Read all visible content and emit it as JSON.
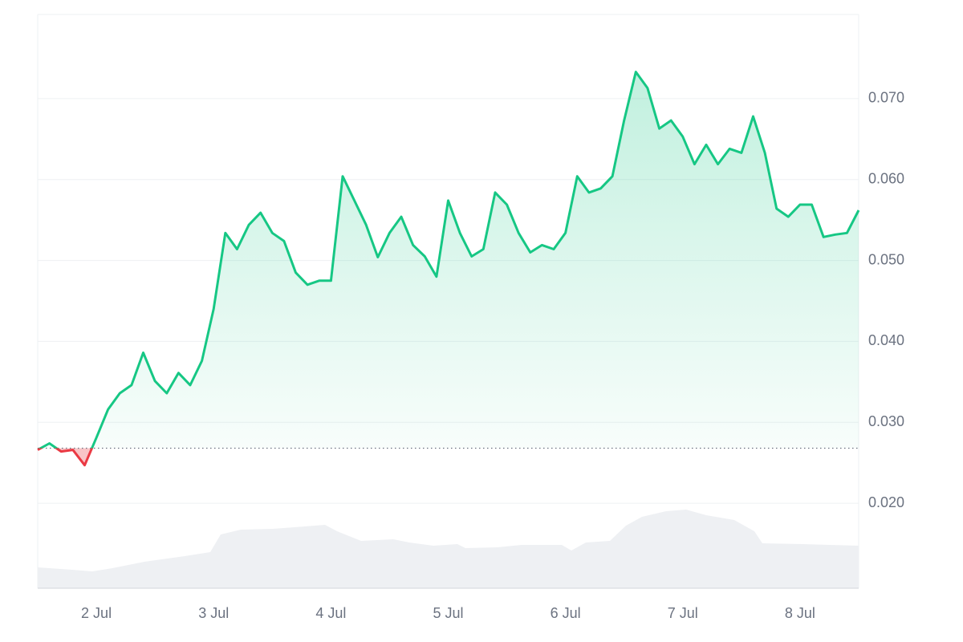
{
  "chart_data": {
    "type": "line",
    "x": [
      1.5,
      1.6,
      1.7,
      1.8,
      1.9,
      2.0,
      2.1,
      2.2,
      2.3,
      2.4,
      2.5,
      2.6,
      2.7,
      2.8,
      2.9,
      3.0,
      3.1,
      3.2,
      3.3,
      3.4,
      3.5,
      3.6,
      3.7,
      3.8,
      3.9,
      4.0,
      4.1,
      4.2,
      4.3,
      4.4,
      4.5,
      4.6,
      4.7,
      4.8,
      4.9,
      5.0,
      5.1,
      5.2,
      5.3,
      5.4,
      5.5,
      5.6,
      5.7,
      5.8,
      5.9,
      6.0,
      6.1,
      6.2,
      6.3,
      6.4,
      6.5,
      6.6,
      6.7,
      6.8,
      6.9,
      7.0,
      7.1,
      7.2,
      7.3,
      7.4,
      7.5,
      7.6,
      7.7,
      7.8,
      7.9,
      8.0,
      8.1,
      8.2,
      8.3,
      8.4,
      8.5
    ],
    "values": [
      0.0266,
      0.0274,
      0.0264,
      0.0266,
      0.0247,
      0.0281,
      0.0316,
      0.0336,
      0.0346,
      0.0386,
      0.0351,
      0.0336,
      0.0361,
      0.0346,
      0.0376,
      0.044,
      0.0534,
      0.0514,
      0.0544,
      0.0559,
      0.0534,
      0.0524,
      0.0485,
      0.047,
      0.0475,
      0.0475,
      0.0604,
      0.0574,
      0.0544,
      0.0504,
      0.0534,
      0.0554,
      0.0519,
      0.0505,
      0.048,
      0.0574,
      0.0534,
      0.0505,
      0.0514,
      0.0584,
      0.0569,
      0.0534,
      0.051,
      0.0519,
      0.0514,
      0.0534,
      0.0604,
      0.0584,
      0.0589,
      0.0604,
      0.0673,
      0.0733,
      0.0713,
      0.0663,
      0.0673,
      0.0653,
      0.0619,
      0.0643,
      0.0619,
      0.0638,
      0.0633,
      0.0678,
      0.0633,
      0.0564,
      0.0554,
      0.0569,
      0.0569,
      0.0529,
      0.0532,
      0.0534,
      0.0562
    ],
    "baseline": 0.0268,
    "up_color": "#16c784",
    "down_color": "#ea3943",
    "xlim": [
      1.5,
      8.5
    ],
    "xticks": [
      {
        "value": 2,
        "label": "2 Jul"
      },
      {
        "value": 3,
        "label": "3 Jul"
      },
      {
        "value": 4,
        "label": "4 Jul"
      },
      {
        "value": 5,
        "label": "5 Jul"
      },
      {
        "value": 6,
        "label": "6 Jul"
      },
      {
        "value": 7,
        "label": "7 Jul"
      },
      {
        "value": 8,
        "label": "8 Jul"
      }
    ],
    "ylim": [
      0.0095,
      0.0804
    ],
    "yticks": [
      {
        "value": 0.02,
        "label": "0.020"
      },
      {
        "value": 0.03,
        "label": "0.030"
      },
      {
        "value": 0.04,
        "label": "0.040"
      },
      {
        "value": 0.05,
        "label": "0.050"
      },
      {
        "value": 0.06,
        "label": "0.060"
      },
      {
        "value": 0.07,
        "label": "0.070"
      }
    ],
    "grid": true
  }
}
